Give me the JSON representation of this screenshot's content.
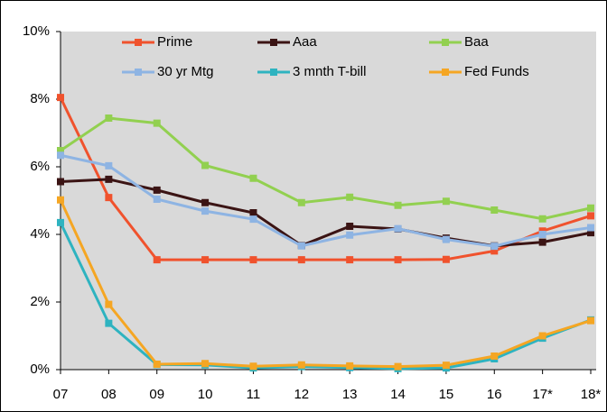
{
  "chart_data": {
    "type": "line",
    "categories": [
      "07",
      "08",
      "09",
      "10",
      "11",
      "12",
      "13",
      "14",
      "15",
      "16",
      "17*",
      "18*"
    ],
    "ylim": [
      0,
      10
    ],
    "yticks": [
      {
        "value": 0,
        "label": "0%"
      },
      {
        "value": 2,
        "label": "2%"
      },
      {
        "value": 4,
        "label": "4%"
      },
      {
        "value": 6,
        "label": "6%"
      },
      {
        "value": 8,
        "label": "8%"
      },
      {
        "value": 10,
        "label": "10%"
      }
    ],
    "legend": "top",
    "grid": false,
    "series": [
      {
        "name": "Prime",
        "color": "#f0522d",
        "values": [
          8.05,
          5.09,
          3.25,
          3.25,
          3.25,
          3.25,
          3.25,
          3.25,
          3.26,
          3.51,
          4.1,
          4.55
        ]
      },
      {
        "name": "Aaa",
        "color": "#3b1414",
        "values": [
          5.56,
          5.63,
          5.31,
          4.94,
          4.64,
          3.67,
          4.24,
          4.16,
          3.89,
          3.66,
          3.77,
          4.05
        ]
      },
      {
        "name": "Baa",
        "color": "#92d050",
        "values": [
          6.48,
          7.44,
          7.29,
          6.04,
          5.66,
          4.94,
          5.1,
          4.86,
          4.98,
          4.72,
          4.46,
          4.78
        ]
      },
      {
        "name": "30 yr Mtg",
        "color": "#8eb4e3",
        "values": [
          6.34,
          6.03,
          5.04,
          4.69,
          4.45,
          3.66,
          3.98,
          4.17,
          3.85,
          3.65,
          4.0,
          4.2
        ]
      },
      {
        "name": "3 mnth T-bill",
        "color": "#2eb3c0",
        "values": [
          4.35,
          1.37,
          0.15,
          0.14,
          0.05,
          0.09,
          0.06,
          0.03,
          0.05,
          0.32,
          0.93,
          1.47
        ]
      },
      {
        "name": "Fed Funds",
        "color": "#f5a623",
        "values": [
          5.02,
          1.93,
          0.16,
          0.18,
          0.1,
          0.14,
          0.11,
          0.09,
          0.13,
          0.4,
          1.0,
          1.45
        ]
      }
    ]
  }
}
